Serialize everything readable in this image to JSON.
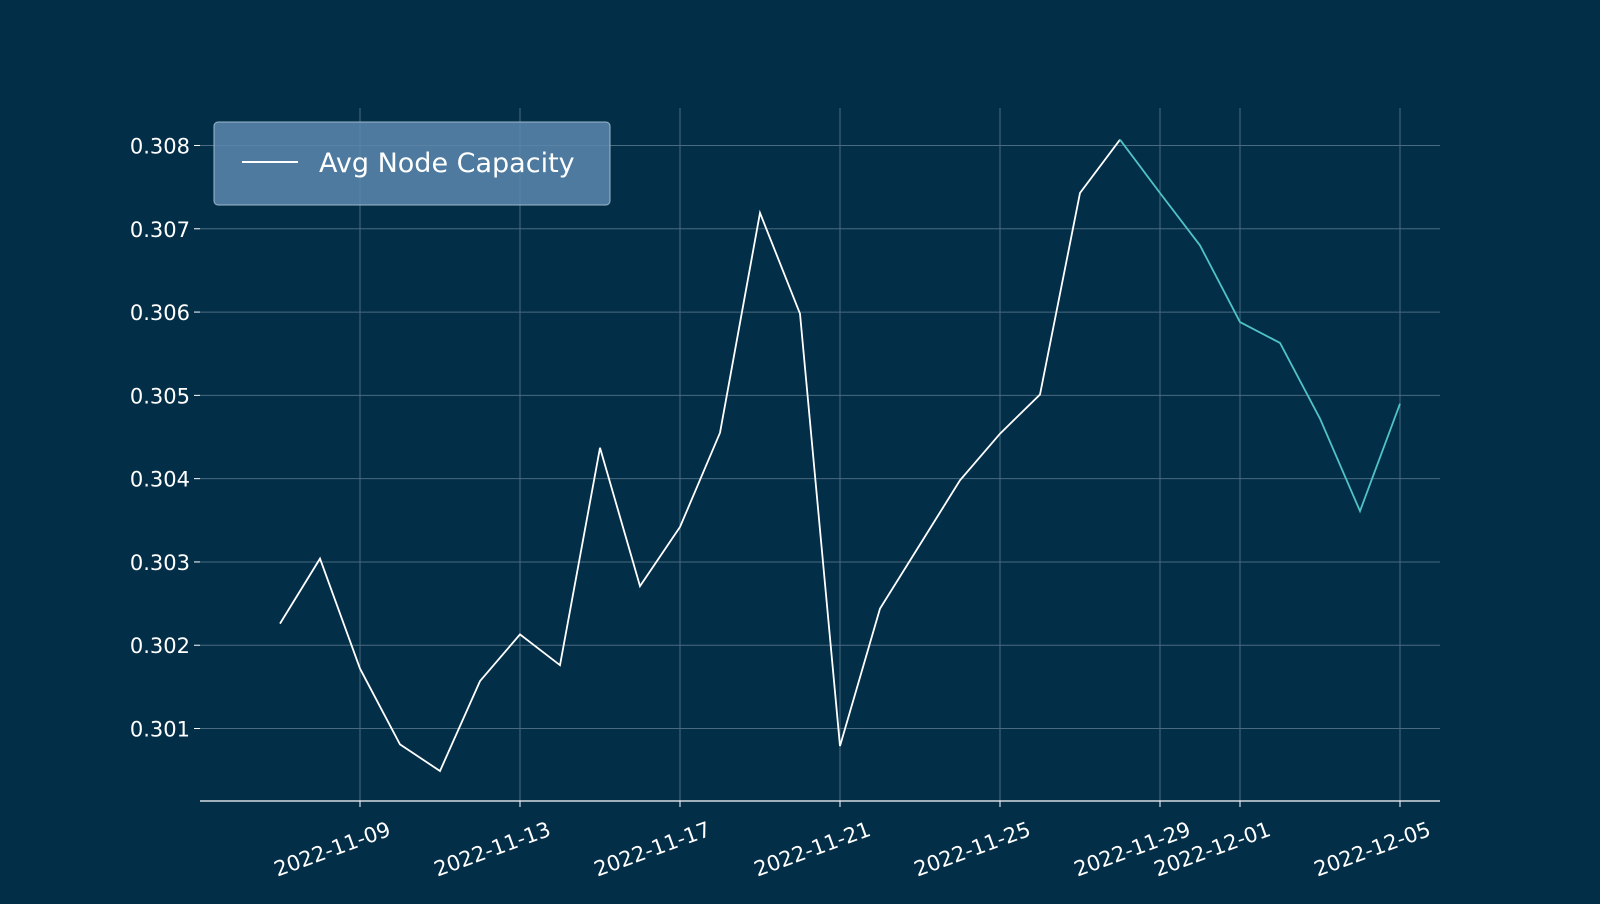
{
  "chart_data": {
    "type": "line",
    "title": "",
    "xlabel": "",
    "ylabel": "",
    "legend": {
      "placement": "top-left",
      "entries": [
        "Avg Node Capacity"
      ]
    },
    "grid": true,
    "xlim": [
      "2022-11-05",
      "2022-12-06"
    ],
    "ylim": [
      0.30013,
      0.30845
    ],
    "x_ticks": [
      "2022-11-09",
      "2022-11-13",
      "2022-11-17",
      "2022-11-21",
      "2022-11-25",
      "2022-11-29",
      "2022-12-01",
      "2022-12-05"
    ],
    "y_ticks": [
      "0.301",
      "0.302",
      "0.303",
      "0.304",
      "0.305",
      "0.306",
      "0.307",
      "0.308"
    ],
    "series": [
      {
        "name": "Avg Node Capacity",
        "color": "#ffffff",
        "x": [
          "2022-11-07",
          "2022-11-08",
          "2022-11-09",
          "2022-11-10",
          "2022-11-11",
          "2022-11-12",
          "2022-11-13",
          "2022-11-14",
          "2022-11-15",
          "2022-11-16",
          "2022-11-17",
          "2022-11-18",
          "2022-11-19",
          "2022-11-20",
          "2022-11-21",
          "2022-11-22",
          "2022-11-23",
          "2022-11-24",
          "2022-11-25",
          "2022-11-26",
          "2022-11-27",
          "2022-11-28"
        ],
        "values": [
          0.30226,
          0.30304,
          0.30172,
          0.30081,
          0.30049,
          0.30157,
          0.30213,
          0.30176,
          0.30437,
          0.30271,
          0.30342,
          0.30455,
          0.30719,
          0.30598,
          0.30079,
          0.30244,
          0.30321,
          0.30398,
          0.30454,
          0.30501,
          0.30743,
          0.30807
        ]
      },
      {
        "name": "",
        "color": "#4fc3c8",
        "x": [
          "2022-11-28",
          "2022-11-29",
          "2022-11-30",
          "2022-12-01",
          "2022-12-02",
          "2022-12-03",
          "2022-12-04",
          "2022-12-05"
        ],
        "values": [
          0.30807,
          0.30743,
          0.3068,
          0.30588,
          0.30563,
          0.30472,
          0.30361,
          0.3049
        ]
      }
    ],
    "colors": {
      "background": "#032e48",
      "grid": "#4a6a80",
      "legend_bg": "#5b87ae",
      "text": "#ffffff"
    }
  }
}
